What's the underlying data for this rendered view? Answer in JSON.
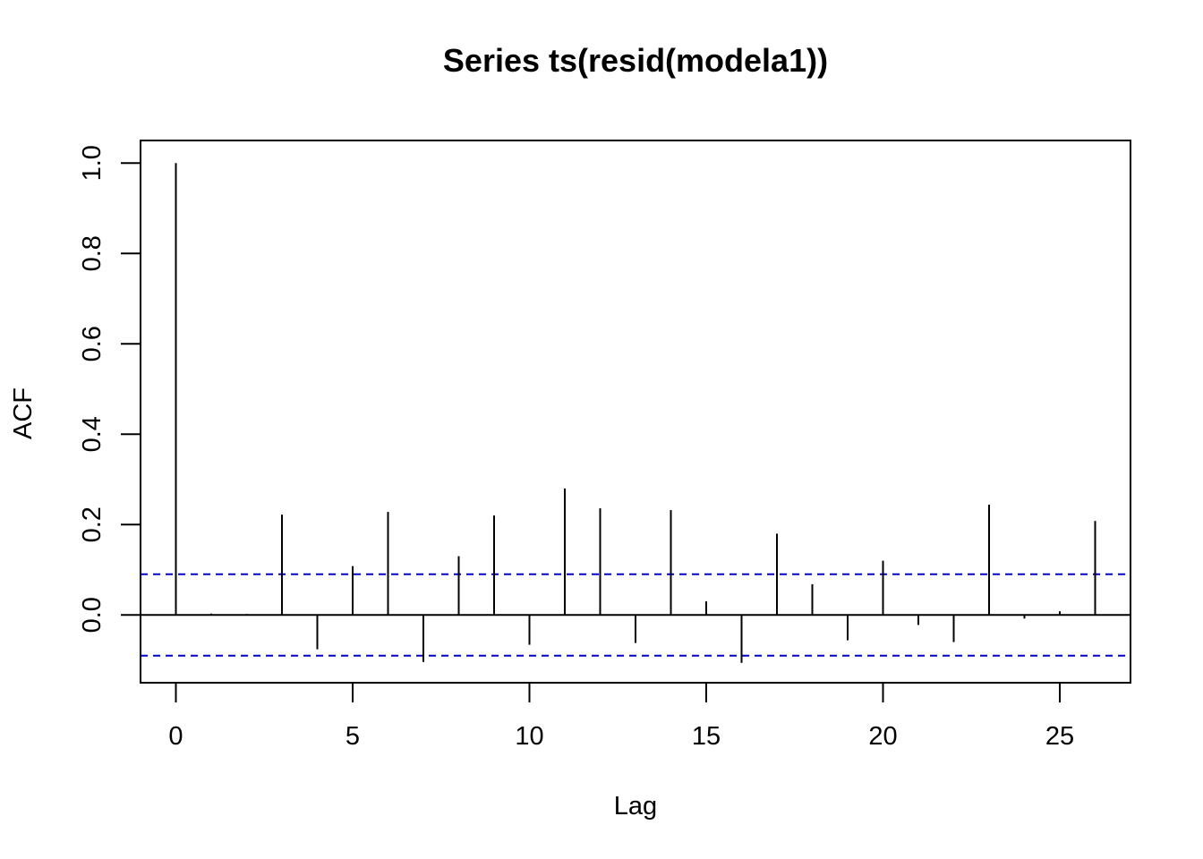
{
  "chart_data": {
    "type": "bar",
    "title": "Series  ts(resid(modela1))",
    "xlabel": "Lag",
    "ylabel": "ACF",
    "xlim": [
      -1,
      27
    ],
    "ylim": [
      -0.15,
      1.05
    ],
    "x_ticks": [
      "0",
      "5",
      "10",
      "15",
      "20",
      "25"
    ],
    "y_ticks": [
      "0.0",
      "0.2",
      "0.4",
      "0.6",
      "0.8",
      "1.0"
    ],
    "grid": false,
    "series": [
      {
        "lags": [
          0,
          1,
          2,
          3,
          4,
          5,
          6,
          7,
          8,
          9,
          10,
          11,
          12,
          13,
          14,
          15,
          16,
          17,
          18,
          19,
          20,
          21,
          22,
          23,
          24,
          25,
          26
        ],
        "values": [
          1.0,
          0.003,
          0.002,
          0.222,
          -0.076,
          0.108,
          0.228,
          -0.104,
          0.13,
          0.22,
          -0.066,
          0.28,
          0.236,
          -0.062,
          0.232,
          0.03,
          -0.106,
          0.18,
          0.068,
          -0.056,
          0.12,
          -0.022,
          -0.06,
          0.244,
          -0.008,
          0.008,
          0.208
        ],
        "color": "#000000"
      }
    ],
    "confidence_bounds": {
      "upper": 0.09,
      "lower": -0.09,
      "color": "#0000CD",
      "style": "dashed"
    }
  }
}
